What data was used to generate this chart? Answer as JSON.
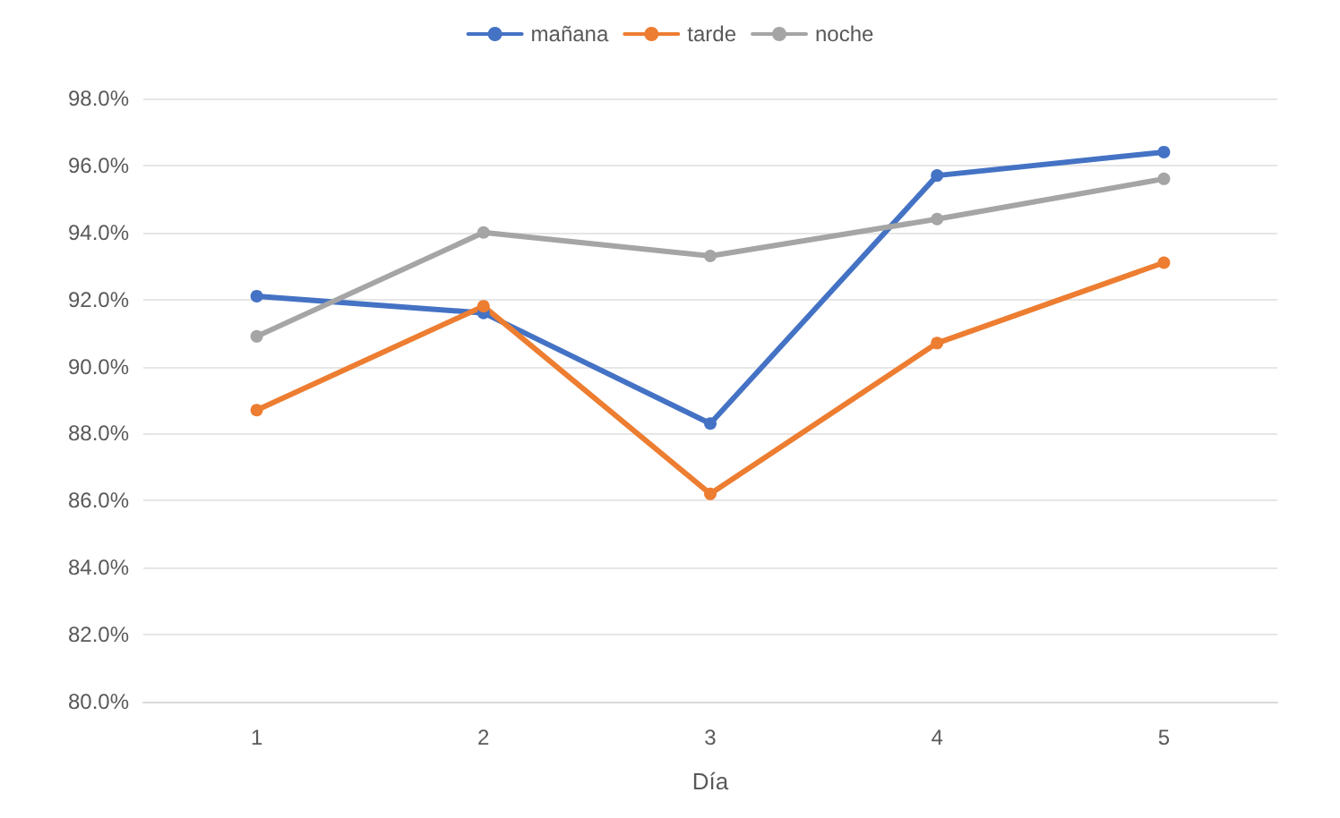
{
  "chart_data": {
    "type": "line",
    "xlabel": "Día",
    "categories": [
      "1",
      "2",
      "3",
      "4",
      "5"
    ],
    "series": [
      {
        "name": "mañana",
        "color": "#4472c4",
        "values": [
          92.1,
          91.6,
          88.3,
          95.7,
          96.4
        ]
      },
      {
        "name": "tarde",
        "color": "#ed7d31",
        "values": [
          88.7,
          91.8,
          86.2,
          90.7,
          93.1
        ]
      },
      {
        "name": "noche",
        "color": "#a5a5a5",
        "values": [
          90.9,
          94.0,
          93.3,
          94.4,
          95.6
        ]
      }
    ],
    "ylim": [
      80,
      98
    ],
    "yticks": [
      {
        "value": 80,
        "label": "80.0%"
      },
      {
        "value": 82,
        "label": "82.0%"
      },
      {
        "value": 84,
        "label": "84.0%"
      },
      {
        "value": 86,
        "label": "86.0%"
      },
      {
        "value": 88,
        "label": "88.0%"
      },
      {
        "value": 90,
        "label": "90.0%"
      },
      {
        "value": 92,
        "label": "92.0%"
      },
      {
        "value": 94,
        "label": "94.0%"
      },
      {
        "value": 96,
        "label": "96.0%"
      },
      {
        "value": 98,
        "label": "98.0%"
      }
    ],
    "grid": "y",
    "legend": "top",
    "marker": "circle",
    "line_style": "solid"
  }
}
